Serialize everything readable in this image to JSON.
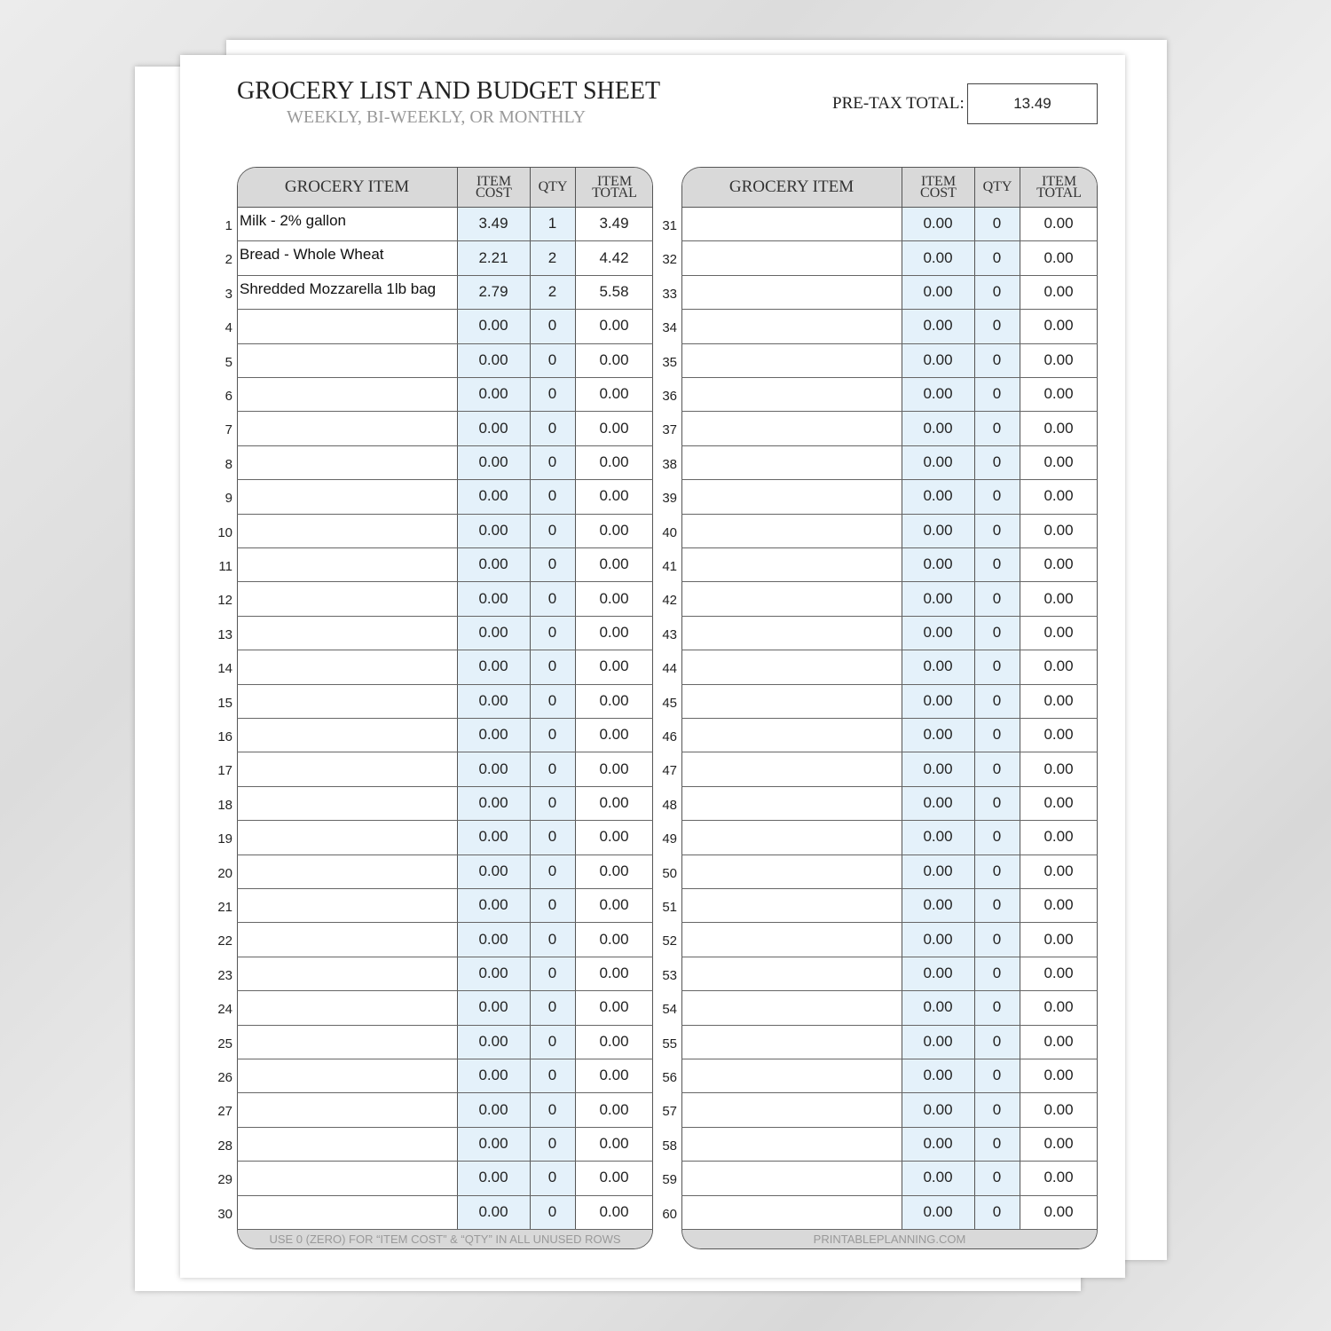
{
  "header": {
    "title": "GROCERY LIST AND BUDGET SHEET",
    "subtitle": "WEEKLY, BI-WEEKLY, OR MONTHLY",
    "total_label": "PRE-TAX TOTAL:",
    "total_value": "13.49"
  },
  "tables": [
    {
      "columns": [
        "GROCERY ITEM",
        "ITEM COST",
        "QTY",
        "ITEM TOTAL"
      ],
      "rows": [
        [
          "1",
          "Milk - 2% gallon",
          "3.49",
          "1",
          "3.49"
        ],
        [
          "2",
          "Bread - Whole Wheat",
          "2.21",
          "2",
          "4.42"
        ],
        [
          "3",
          "Shredded Mozzarella 1lb bag",
          "2.79",
          "2",
          "5.58"
        ],
        [
          "4",
          null,
          "0.00",
          "0",
          "0.00"
        ],
        [
          "5",
          null,
          "0.00",
          "0",
          "0.00"
        ],
        [
          "6",
          null,
          "0.00",
          "0",
          "0.00"
        ],
        [
          "7",
          null,
          "0.00",
          "0",
          "0.00"
        ],
        [
          "8",
          null,
          "0.00",
          "0",
          "0.00"
        ],
        [
          "9",
          null,
          "0.00",
          "0",
          "0.00"
        ],
        [
          "10",
          null,
          "0.00",
          "0",
          "0.00"
        ],
        [
          "11",
          null,
          "0.00",
          "0",
          "0.00"
        ],
        [
          "12",
          null,
          "0.00",
          "0",
          "0.00"
        ],
        [
          "13",
          null,
          "0.00",
          "0",
          "0.00"
        ],
        [
          "14",
          null,
          "0.00",
          "0",
          "0.00"
        ],
        [
          "15",
          null,
          "0.00",
          "0",
          "0.00"
        ],
        [
          "16",
          null,
          "0.00",
          "0",
          "0.00"
        ],
        [
          "17",
          null,
          "0.00",
          "0",
          "0.00"
        ],
        [
          "18",
          null,
          "0.00",
          "0",
          "0.00"
        ],
        [
          "19",
          null,
          "0.00",
          "0",
          "0.00"
        ],
        [
          "20",
          null,
          "0.00",
          "0",
          "0.00"
        ],
        [
          "21",
          null,
          "0.00",
          "0",
          "0.00"
        ],
        [
          "22",
          null,
          "0.00",
          "0",
          "0.00"
        ],
        [
          "23",
          null,
          "0.00",
          "0",
          "0.00"
        ],
        [
          "24",
          null,
          "0.00",
          "0",
          "0.00"
        ],
        [
          "25",
          null,
          "0.00",
          "0",
          "0.00"
        ],
        [
          "26",
          null,
          "0.00",
          "0",
          "0.00"
        ],
        [
          "27",
          null,
          "0.00",
          "0",
          "0.00"
        ],
        [
          "28",
          null,
          "0.00",
          "0",
          "0.00"
        ],
        [
          "29",
          null,
          "0.00",
          "0",
          "0.00"
        ],
        [
          "30",
          null,
          "0.00",
          "0",
          "0.00"
        ]
      ],
      "footer": "USE 0 (ZERO) FOR “ITEM COST” & “QTY” IN ALL UNUSED ROWS"
    },
    {
      "columns": [
        "GROCERY ITEM",
        "ITEM COST",
        "QTY",
        "ITEM TOTAL"
      ],
      "rows": [
        [
          "31",
          null,
          "0.00",
          "0",
          "0.00"
        ],
        [
          "32",
          null,
          "0.00",
          "0",
          "0.00"
        ],
        [
          "33",
          null,
          "0.00",
          "0",
          "0.00"
        ],
        [
          "34",
          null,
          "0.00",
          "0",
          "0.00"
        ],
        [
          "35",
          null,
          "0.00",
          "0",
          "0.00"
        ],
        [
          "36",
          null,
          "0.00",
          "0",
          "0.00"
        ],
        [
          "37",
          null,
          "0.00",
          "0",
          "0.00"
        ],
        [
          "38",
          null,
          "0.00",
          "0",
          "0.00"
        ],
        [
          "39",
          null,
          "0.00",
          "0",
          "0.00"
        ],
        [
          "40",
          null,
          "0.00",
          "0",
          "0.00"
        ],
        [
          "41",
          null,
          "0.00",
          "0",
          "0.00"
        ],
        [
          "42",
          null,
          "0.00",
          "0",
          "0.00"
        ],
        [
          "43",
          null,
          "0.00",
          "0",
          "0.00"
        ],
        [
          "44",
          null,
          "0.00",
          "0",
          "0.00"
        ],
        [
          "45",
          null,
          "0.00",
          "0",
          "0.00"
        ],
        [
          "46",
          null,
          "0.00",
          "0",
          "0.00"
        ],
        [
          "47",
          null,
          "0.00",
          "0",
          "0.00"
        ],
        [
          "48",
          null,
          "0.00",
          "0",
          "0.00"
        ],
        [
          "49",
          null,
          "0.00",
          "0",
          "0.00"
        ],
        [
          "50",
          null,
          "0.00",
          "0",
          "0.00"
        ],
        [
          "51",
          null,
          "0.00",
          "0",
          "0.00"
        ],
        [
          "52",
          null,
          "0.00",
          "0",
          "0.00"
        ],
        [
          "53",
          null,
          "0.00",
          "0",
          "0.00"
        ],
        [
          "54",
          null,
          "0.00",
          "0",
          "0.00"
        ],
        [
          "55",
          null,
          "0.00",
          "0",
          "0.00"
        ],
        [
          "56",
          null,
          "0.00",
          "0",
          "0.00"
        ],
        [
          "57",
          null,
          "0.00",
          "0",
          "0.00"
        ],
        [
          "58",
          null,
          "0.00",
          "0",
          "0.00"
        ],
        [
          "59",
          null,
          "0.00",
          "0",
          "0.00"
        ],
        [
          "60",
          null,
          "0.00",
          "0",
          "0.00"
        ]
      ],
      "footer": "PRINTABLEPLANNING.COM"
    }
  ]
}
